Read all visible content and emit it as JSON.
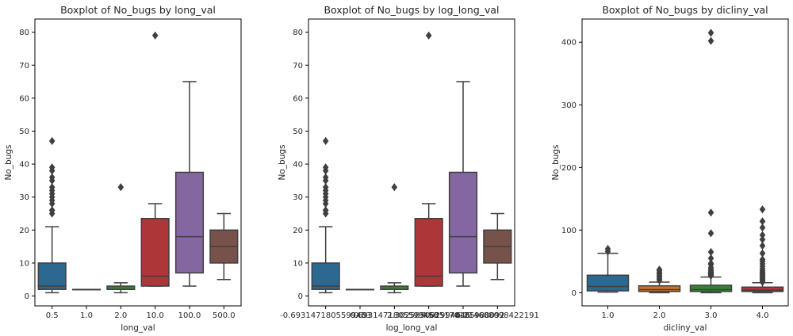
{
  "chart_data": [
    {
      "type": "box",
      "title": "Boxplot of No_bugs by long_val",
      "xlabel": "long_val",
      "ylabel": "No_bugs",
      "ylim": [
        -3,
        84
      ],
      "yticks": [
        0,
        10,
        20,
        30,
        40,
        50,
        60,
        70,
        80
      ],
      "categories": [
        "0.5",
        "1.0",
        "2.0",
        "10.0",
        "100.0",
        "500.0"
      ],
      "boxes": [
        {
          "color": "#3274a1",
          "whislo": 1,
          "q1": 2,
          "med": 3,
          "q3": 10,
          "whishi": 21,
          "fliers": [
            25,
            26,
            26,
            28,
            29,
            30,
            31,
            32,
            33,
            35,
            36,
            38,
            39,
            47
          ]
        },
        {
          "color": "#e1812c",
          "whislo": 2,
          "q1": 2,
          "med": 2,
          "q3": 2,
          "whishi": 2,
          "fliers": []
        },
        {
          "color": "#3a923a",
          "whislo": 1,
          "q1": 2,
          "med": 2,
          "q3": 3,
          "whishi": 4,
          "fliers": [
            33
          ]
        },
        {
          "color": "#c03d3e",
          "whislo": 3,
          "q1": 3,
          "med": 6,
          "q3": 23.5,
          "whishi": 28,
          "fliers": [
            79
          ]
        },
        {
          "color": "#9372b2",
          "whislo": 3,
          "q1": 7,
          "med": 18,
          "q3": 37.5,
          "whishi": 65,
          "fliers": []
        },
        {
          "color": "#845b53",
          "whislo": 5,
          "q1": 10,
          "med": 15,
          "q3": 20,
          "whishi": 25,
          "fliers": []
        }
      ]
    },
    {
      "type": "box",
      "title": "Boxplot of No_bugs by log_long_val",
      "xlabel": "log_long_val",
      "ylabel": "No_bugs",
      "ylim": [
        -3,
        84
      ],
      "yticks": [
        0,
        10,
        20,
        30,
        40,
        50,
        60,
        70,
        80
      ],
      "categories": [
        "-0.6931471805599453",
        "0.0",
        "0.6931471805599453",
        "2.302585092994046",
        "4.605170185988092",
        "6.214608098422191"
      ],
      "boxes": [
        {
          "color": "#3274a1",
          "whislo": 1,
          "q1": 2,
          "med": 3,
          "q3": 10,
          "whishi": 21,
          "fliers": [
            25,
            26,
            26,
            28,
            29,
            30,
            31,
            32,
            33,
            35,
            36,
            38,
            39,
            47
          ]
        },
        {
          "color": "#e1812c",
          "whislo": 2,
          "q1": 2,
          "med": 2,
          "q3": 2,
          "whishi": 2,
          "fliers": []
        },
        {
          "color": "#3a923a",
          "whislo": 1,
          "q1": 2,
          "med": 2,
          "q3": 3,
          "whishi": 4,
          "fliers": [
            33
          ]
        },
        {
          "color": "#c03d3e",
          "whislo": 3,
          "q1": 3,
          "med": 6,
          "q3": 23.5,
          "whishi": 28,
          "fliers": [
            79
          ]
        },
        {
          "color": "#9372b2",
          "whislo": 3,
          "q1": 7,
          "med": 18,
          "q3": 37.5,
          "whishi": 65,
          "fliers": []
        },
        {
          "color": "#845b53",
          "whislo": 5,
          "q1": 10,
          "med": 15,
          "q3": 20,
          "whishi": 25,
          "fliers": []
        }
      ]
    },
    {
      "type": "box",
      "title": "Boxplot of No_bugs by dicliny_val",
      "xlabel": "dicliny_val",
      "ylabel": "No_bugs",
      "ylim": [
        -21,
        437
      ],
      "yticks": [
        0,
        100,
        200,
        300,
        400
      ],
      "categories": [
        "1.0",
        "2.0",
        "3.0",
        "4.0"
      ],
      "boxes": [
        {
          "color": "#3274a1",
          "whislo": 1,
          "q1": 3,
          "med": 10,
          "q3": 28,
          "whishi": 63,
          "fliers": [
            66,
            70
          ]
        },
        {
          "color": "#e1812c",
          "whislo": 0,
          "q1": 2,
          "med": 5,
          "q3": 11,
          "whishi": 17,
          "fliers": [
            20,
            22,
            25,
            27,
            30,
            32,
            35,
            37
          ]
        },
        {
          "color": "#3a923a",
          "whislo": 0,
          "q1": 2,
          "med": 5,
          "q3": 12,
          "whishi": 25,
          "fliers": [
            27,
            28,
            29,
            30,
            31,
            32,
            33,
            35,
            37,
            40,
            45,
            47,
            55,
            65,
            95,
            128,
            402,
            415
          ]
        },
        {
          "color": "#c03d3e",
          "whislo": 0,
          "q1": 2,
          "med": 4,
          "q3": 9,
          "whishi": 16,
          "fliers": [
            17,
            19,
            21,
            23,
            25,
            27,
            29,
            31,
            33,
            35,
            38,
            42,
            46,
            50,
            53,
            63,
            75,
            85,
            92,
            104,
            114,
            133
          ]
        }
      ]
    }
  ]
}
